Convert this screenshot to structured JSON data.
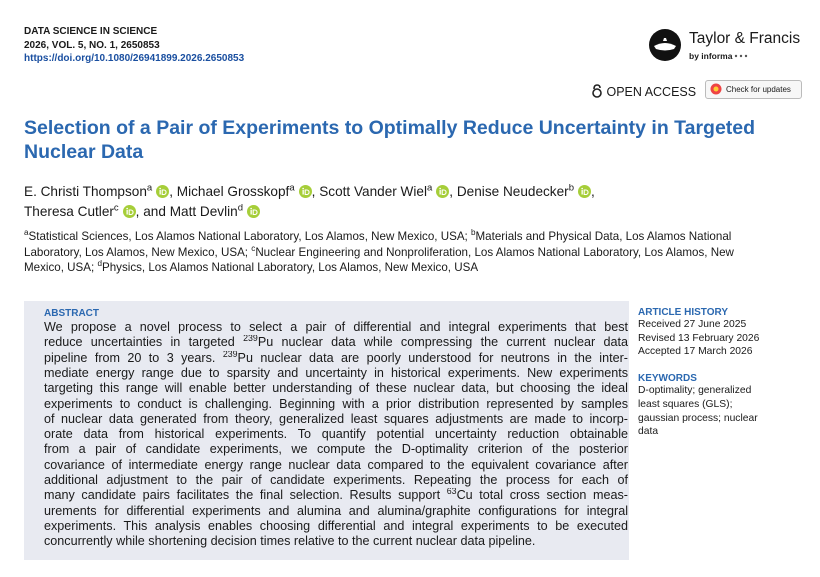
{
  "header": {
    "journal": "DATA SCIENCE IN SCIENCE",
    "issue": "2026, VOL. 5, NO. 1, 2650853",
    "doi": "https://doi.org/10.1080/26941899.2026.2650853",
    "publisher": "Taylor & Francis",
    "publisher_sub": "by informa",
    "open_access": "OPEN ACCESS",
    "check_updates": "Check for updates"
  },
  "title_lines": [
    "Selection of a Pair of Experiments to Optimally Reduce Uncertainty in Targeted",
    "Nuclear Data"
  ],
  "authors": [
    {
      "name": "E. Christi Thompson",
      "affiliation": "a",
      "separator": ","
    },
    {
      "name": "Michael Grosskopf",
      "affiliation": "a",
      "separator": ","
    },
    {
      "name": "Scott Vander Wiel",
      "affiliation": "a",
      "separator": ","
    },
    {
      "name": "Denise Neudecker",
      "affiliation": "b",
      "separator": ","
    },
    {
      "name": "Theresa Cutler",
      "affiliation": "c",
      "separator": ", and"
    },
    {
      "name": "Matt Devlin",
      "affiliation": "d"
    }
  ],
  "affiliations": [
    [
      {
        "sup": "a"
      },
      "Statistical Sciences, Los Alamos National Laboratory, Los Alamos, New Mexico, USA; ",
      {
        "sup": "b"
      },
      "Materials and Physical Data, Los Alamos National"
    ],
    [
      "Laboratory, Los Alamos, New Mexico, USA; ",
      {
        "sup": "c"
      },
      "Nuclear Engineering and Nonproliferation, Los Alamos National Laboratory, Los Alamos, New"
    ],
    [
      "Mexico, USA; ",
      {
        "sup": "d"
      },
      "Physics, Los Alamos National Laboratory, Los Alamos, New Mexico, USA"
    ]
  ],
  "abstract": {
    "heading": "ABSTRACT",
    "lines": [
      [
        "We propose a novel process to select a pair of differential and integral experiments that best"
      ],
      [
        "reduce uncertainties in targeted ",
        {
          "sup": "239"
        },
        "Pu nuclear data while compressing the current nuclear data"
      ],
      [
        "pipeline from 20 to 3 years. ",
        {
          "sup": "239"
        },
        "Pu nuclear data are poorly understood for neutrons in the inter-"
      ],
      [
        "mediate energy range due to sparsity and uncertainty in historical experiments. New experiments"
      ],
      [
        "targeting this range will enable better understanding of these nuclear data, but choosing the ideal"
      ],
      [
        "experiments to conduct is challenging. Beginning with a prior distribution represented by samples"
      ],
      [
        "of nuclear data generated from theory, generalized least squares adjustments are made to incorp-"
      ],
      [
        "orate data from historical experiments. To quantify potential uncertainty reduction obtainable"
      ],
      [
        "from a pair of candidate experiments, we compute the D-optimality criterion of the posterior"
      ],
      [
        "covariance of intermediate energy range nuclear data compared to the equivalent covariance after"
      ],
      [
        "additional adjustment to the pair of candidate experiments. Repeating the process for each of"
      ],
      [
        "many candidate pairs facilitates the final selection. Results support ",
        {
          "sup": "63"
        },
        "Cu total cross section meas-"
      ],
      [
        "urements for differential experiments and alumina and alumina/graphite configurations for integral"
      ],
      [
        "experiments. This analysis enables choosing differential and integral experiments to be executed"
      ],
      [
        "concurrently while shortening decision times relative to the current nuclear data pipeline."
      ]
    ]
  },
  "article_history": {
    "heading": "ARTICLE HISTORY",
    "items": [
      "Received 27 June 2025",
      "Revised 13 February 2026",
      "Accepted 17 March 2026"
    ]
  },
  "keywords": {
    "heading": "KEYWORDS",
    "lines": [
      "D-optimality; generalized",
      "least squares (GLS);",
      "gaussian process; nuclear",
      "data"
    ]
  }
}
